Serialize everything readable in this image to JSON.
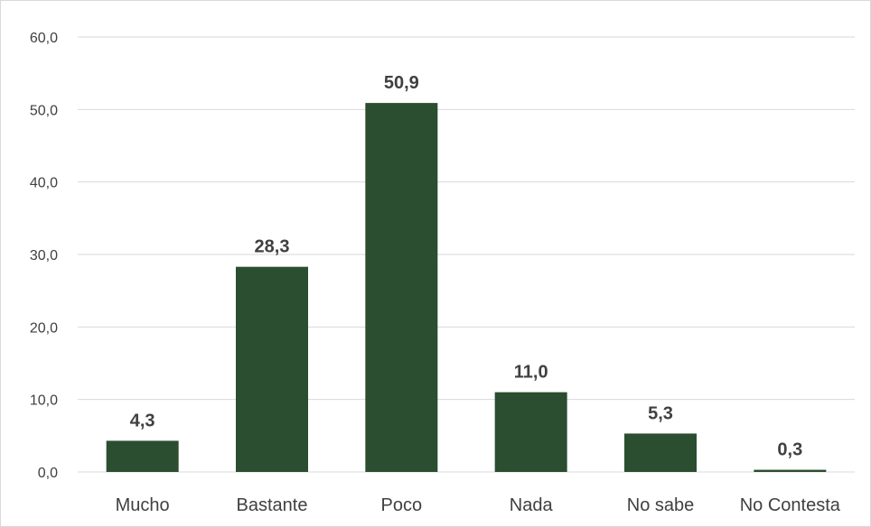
{
  "chart_data": {
    "type": "bar",
    "categories": [
      "Mucho",
      "Bastante",
      "Poco",
      "Nada",
      "No sabe",
      "No Contesta"
    ],
    "values": [
      4.3,
      28.3,
      50.9,
      11.0,
      5.3,
      0.3
    ],
    "value_labels": [
      "4,3",
      "28,3",
      "50,9",
      "11,0",
      "5,3",
      "0,3"
    ],
    "ylim": [
      0,
      60
    ],
    "yticks": [
      0,
      10,
      20,
      30,
      40,
      50,
      60
    ],
    "ytick_labels": [
      "0,0",
      "10,0",
      "20,0",
      "30,0",
      "40,0",
      "50,0",
      "60,0"
    ],
    "title": "",
    "xlabel": "",
    "ylabel": "",
    "grid": true,
    "legend": "none",
    "colors": {
      "bar": "#2a4e2f",
      "grid": "#d9d9d9",
      "text": "#404040"
    }
  }
}
